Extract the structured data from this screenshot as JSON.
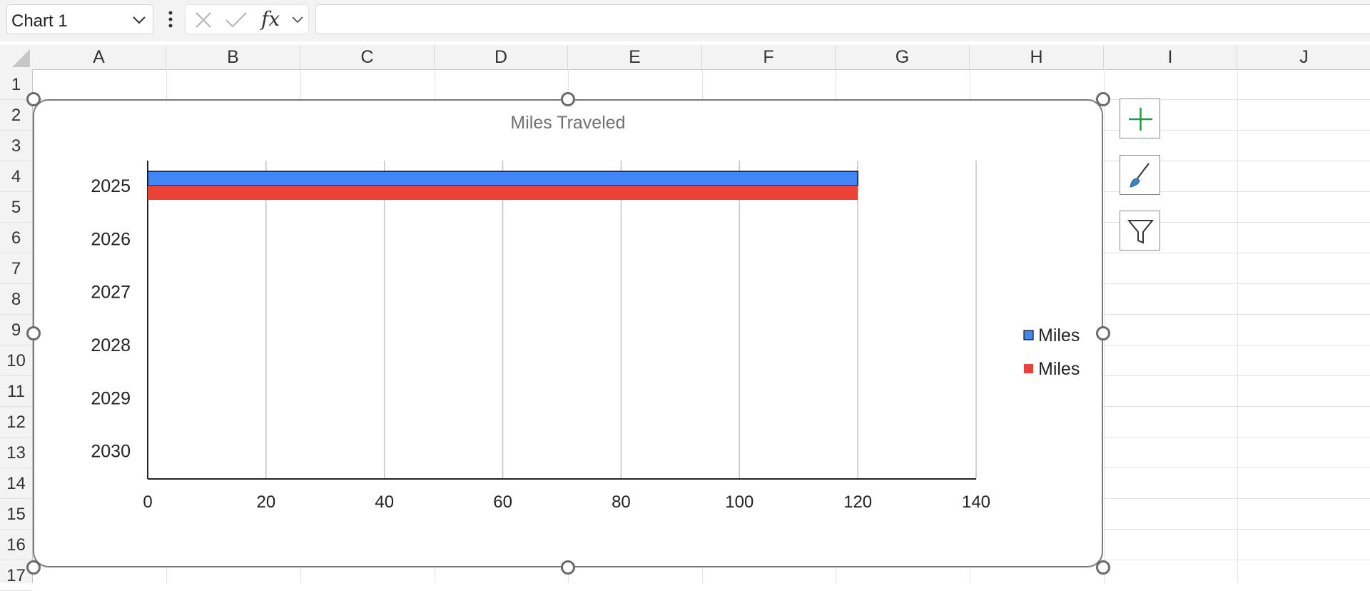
{
  "formula_bar": {
    "name_box_value": "Chart 1",
    "formula_value": ""
  },
  "columns": [
    "A",
    "B",
    "C",
    "D",
    "E",
    "F",
    "G",
    "H",
    "I",
    "J"
  ],
  "rows": [
    "1",
    "2",
    "3",
    "4",
    "5",
    "6",
    "7",
    "8",
    "9",
    "10",
    "11",
    "12",
    "13",
    "14",
    "15",
    "16",
    "17"
  ],
  "icons": {
    "name_box_dropdown": "chevron-down-icon",
    "more_options": "vertical-ellipsis-icon",
    "cancel": "close-icon",
    "enter": "check-icon",
    "insert_function": "fx-icon",
    "chart_elements": "plus-icon",
    "chart_styles": "paintbrush-icon",
    "chart_filters": "funnel-icon"
  },
  "colors": {
    "series_blue": "#4285f4",
    "series_red": "#ea4335",
    "chart_elements_plus": "#1e9e3e",
    "chart_styles_brush": "#3b82c4"
  },
  "chart_data": {
    "type": "bar",
    "orientation": "horizontal",
    "title": "Miles Traveled",
    "categories": [
      "2025",
      "2026",
      "2027",
      "2028",
      "2029",
      "2030"
    ],
    "series": [
      {
        "name": "Miles",
        "values": [
          120,
          null,
          null,
          null,
          null,
          null
        ],
        "color": "#4285f4"
      },
      {
        "name": "Miles",
        "values": [
          120,
          null,
          null,
          null,
          null,
          null
        ],
        "color": "#ea4335"
      }
    ],
    "xlim": [
      0,
      140
    ],
    "x_ticks": [
      "0",
      "20",
      "40",
      "60",
      "80",
      "100",
      "120",
      "140"
    ],
    "grid": "vertical",
    "legend_position": "right"
  }
}
